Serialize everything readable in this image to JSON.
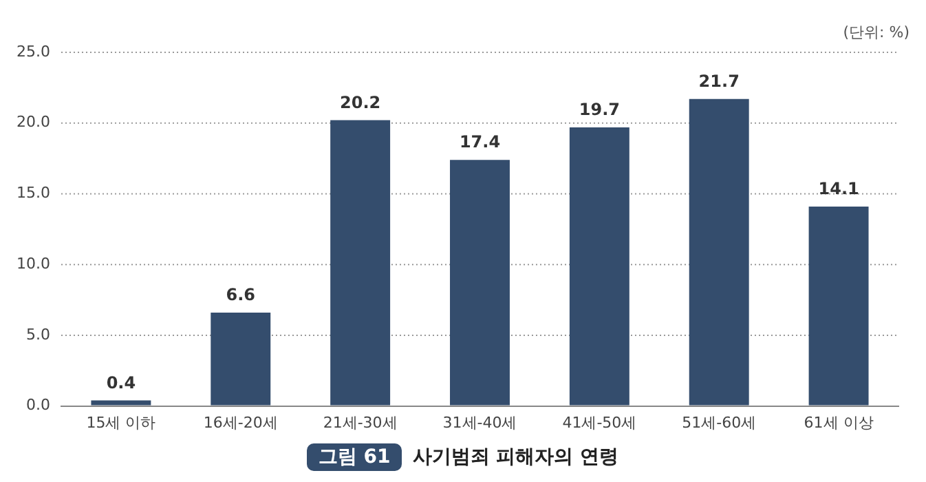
{
  "chart_data": {
    "type": "bar",
    "title": "사기범죄 피해자의 연령",
    "annotations": [
      "그림 61",
      "(단위: %)"
    ],
    "categories": [
      "15세 이하",
      "16세-20세",
      "21세-30세",
      "31세-40세",
      "41세-50세",
      "51세-60세",
      "61세 이상"
    ],
    "values": [
      0.4,
      6.6,
      20.2,
      17.4,
      19.7,
      21.7,
      14.1
    ],
    "color": "#344d6d",
    "ylim": [
      0,
      25
    ],
    "yticks": [
      {
        "value": 0,
        "label": "0.0"
      },
      {
        "value": 5,
        "label": "5.0"
      },
      {
        "value": 10,
        "label": "10.0"
      },
      {
        "value": 15,
        "label": "15.0"
      },
      {
        "value": 20,
        "label": "20.0"
      },
      {
        "value": 25,
        "label": "25.0"
      }
    ],
    "grid": "y",
    "data_labels": true,
    "legend": false
  }
}
